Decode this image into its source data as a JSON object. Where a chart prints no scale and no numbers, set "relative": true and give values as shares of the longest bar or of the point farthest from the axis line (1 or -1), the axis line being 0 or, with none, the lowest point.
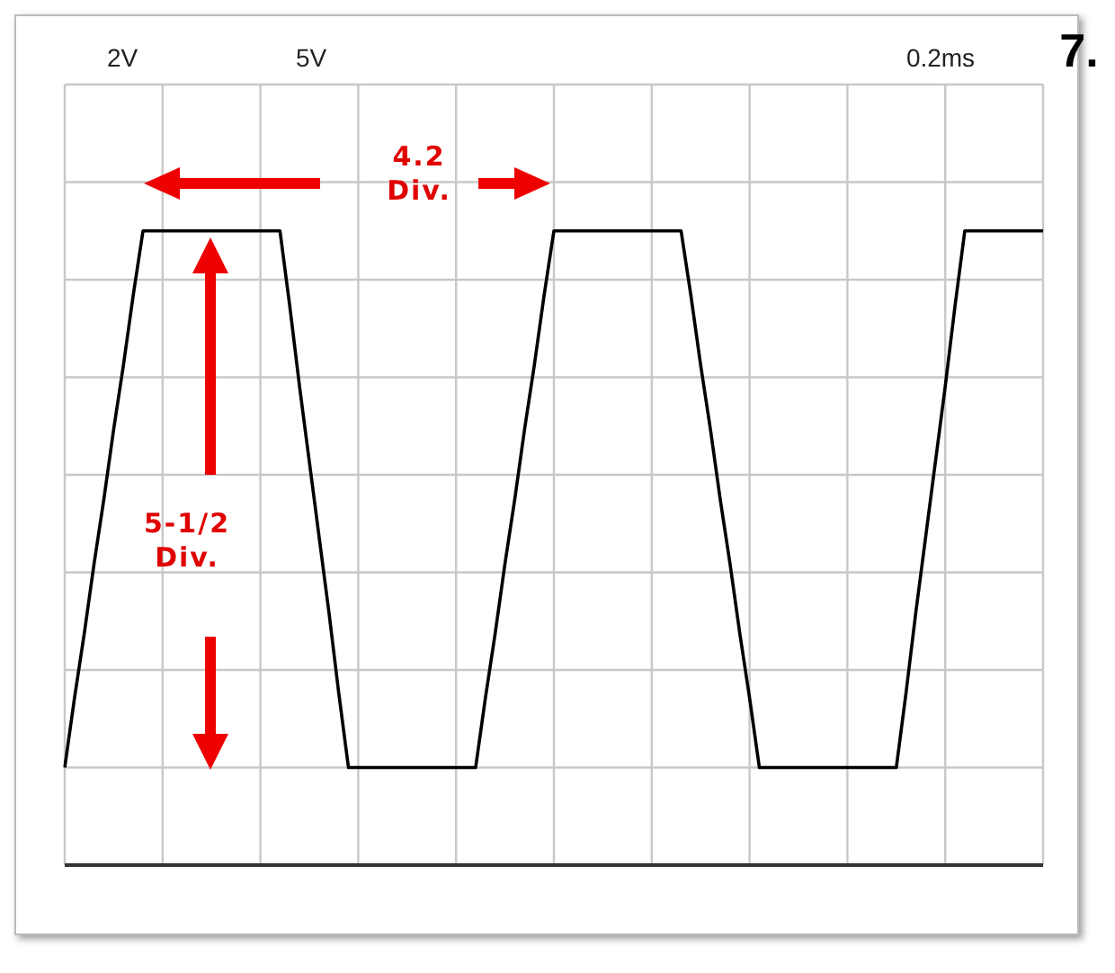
{
  "chart_data": {
    "type": "line",
    "relative": true,
    "grid": true,
    "marker": "none",
    "color": "#000000",
    "categories": [
      null,
      null,
      null,
      null,
      null,
      null,
      null,
      null,
      null,
      null,
      null,
      null,
      null,
      null,
      null,
      null,
      null,
      null,
      null,
      null,
      null,
      null,
      null,
      null,
      null,
      null,
      null,
      null,
      null,
      null,
      null,
      null,
      null,
      null,
      null,
      null,
      null,
      null,
      null,
      null,
      null,
      null,
      null,
      null,
      null,
      null,
      null,
      null,
      null,
      null,
      null,
      null,
      null,
      null,
      null,
      null,
      null,
      null,
      null,
      null,
      null,
      null,
      null,
      null,
      null,
      null,
      null,
      null,
      null,
      null,
      null,
      null,
      null,
      null,
      null,
      null,
      null,
      null,
      null,
      null,
      null,
      null,
      null,
      null,
      null,
      null,
      null,
      null,
      null,
      null,
      null,
      null,
      null,
      null,
      null,
      null,
      null,
      null,
      null,
      null,
      null
    ],
    "values": [
      0,
      0.13,
      0.25,
      0.38,
      0.5,
      0.63,
      0.75,
      0.88,
      1,
      1,
      1,
      1,
      1,
      1,
      1,
      1,
      1,
      1,
      1,
      1,
      1,
      1,
      1,
      0.86,
      0.71,
      0.57,
      0.43,
      0.29,
      0.14,
      0,
      0,
      0,
      0,
      0,
      0,
      0,
      0,
      0,
      0,
      0,
      0,
      0,
      0,
      0.13,
      0.25,
      0.38,
      0.5,
      0.63,
      0.75,
      0.88,
      1,
      1,
      1,
      1,
      1,
      1,
      1,
      1,
      1,
      1,
      1,
      1,
      1,
      1,
      0.88,
      0.75,
      0.63,
      0.5,
      0.38,
      0.25,
      0.13,
      0,
      0,
      0,
      0,
      0,
      0,
      0,
      0,
      0,
      0,
      0,
      0,
      0,
      0,
      0,
      0.14,
      0.29,
      0.43,
      0.57,
      0.71,
      0.86,
      1,
      1,
      1,
      1,
      1,
      1,
      1,
      1,
      1
    ],
    "annotations": [
      "2V",
      "5V",
      "0.2ms",
      "7.",
      "4.2 Div.",
      "5-1/2 Div."
    ]
  }
}
